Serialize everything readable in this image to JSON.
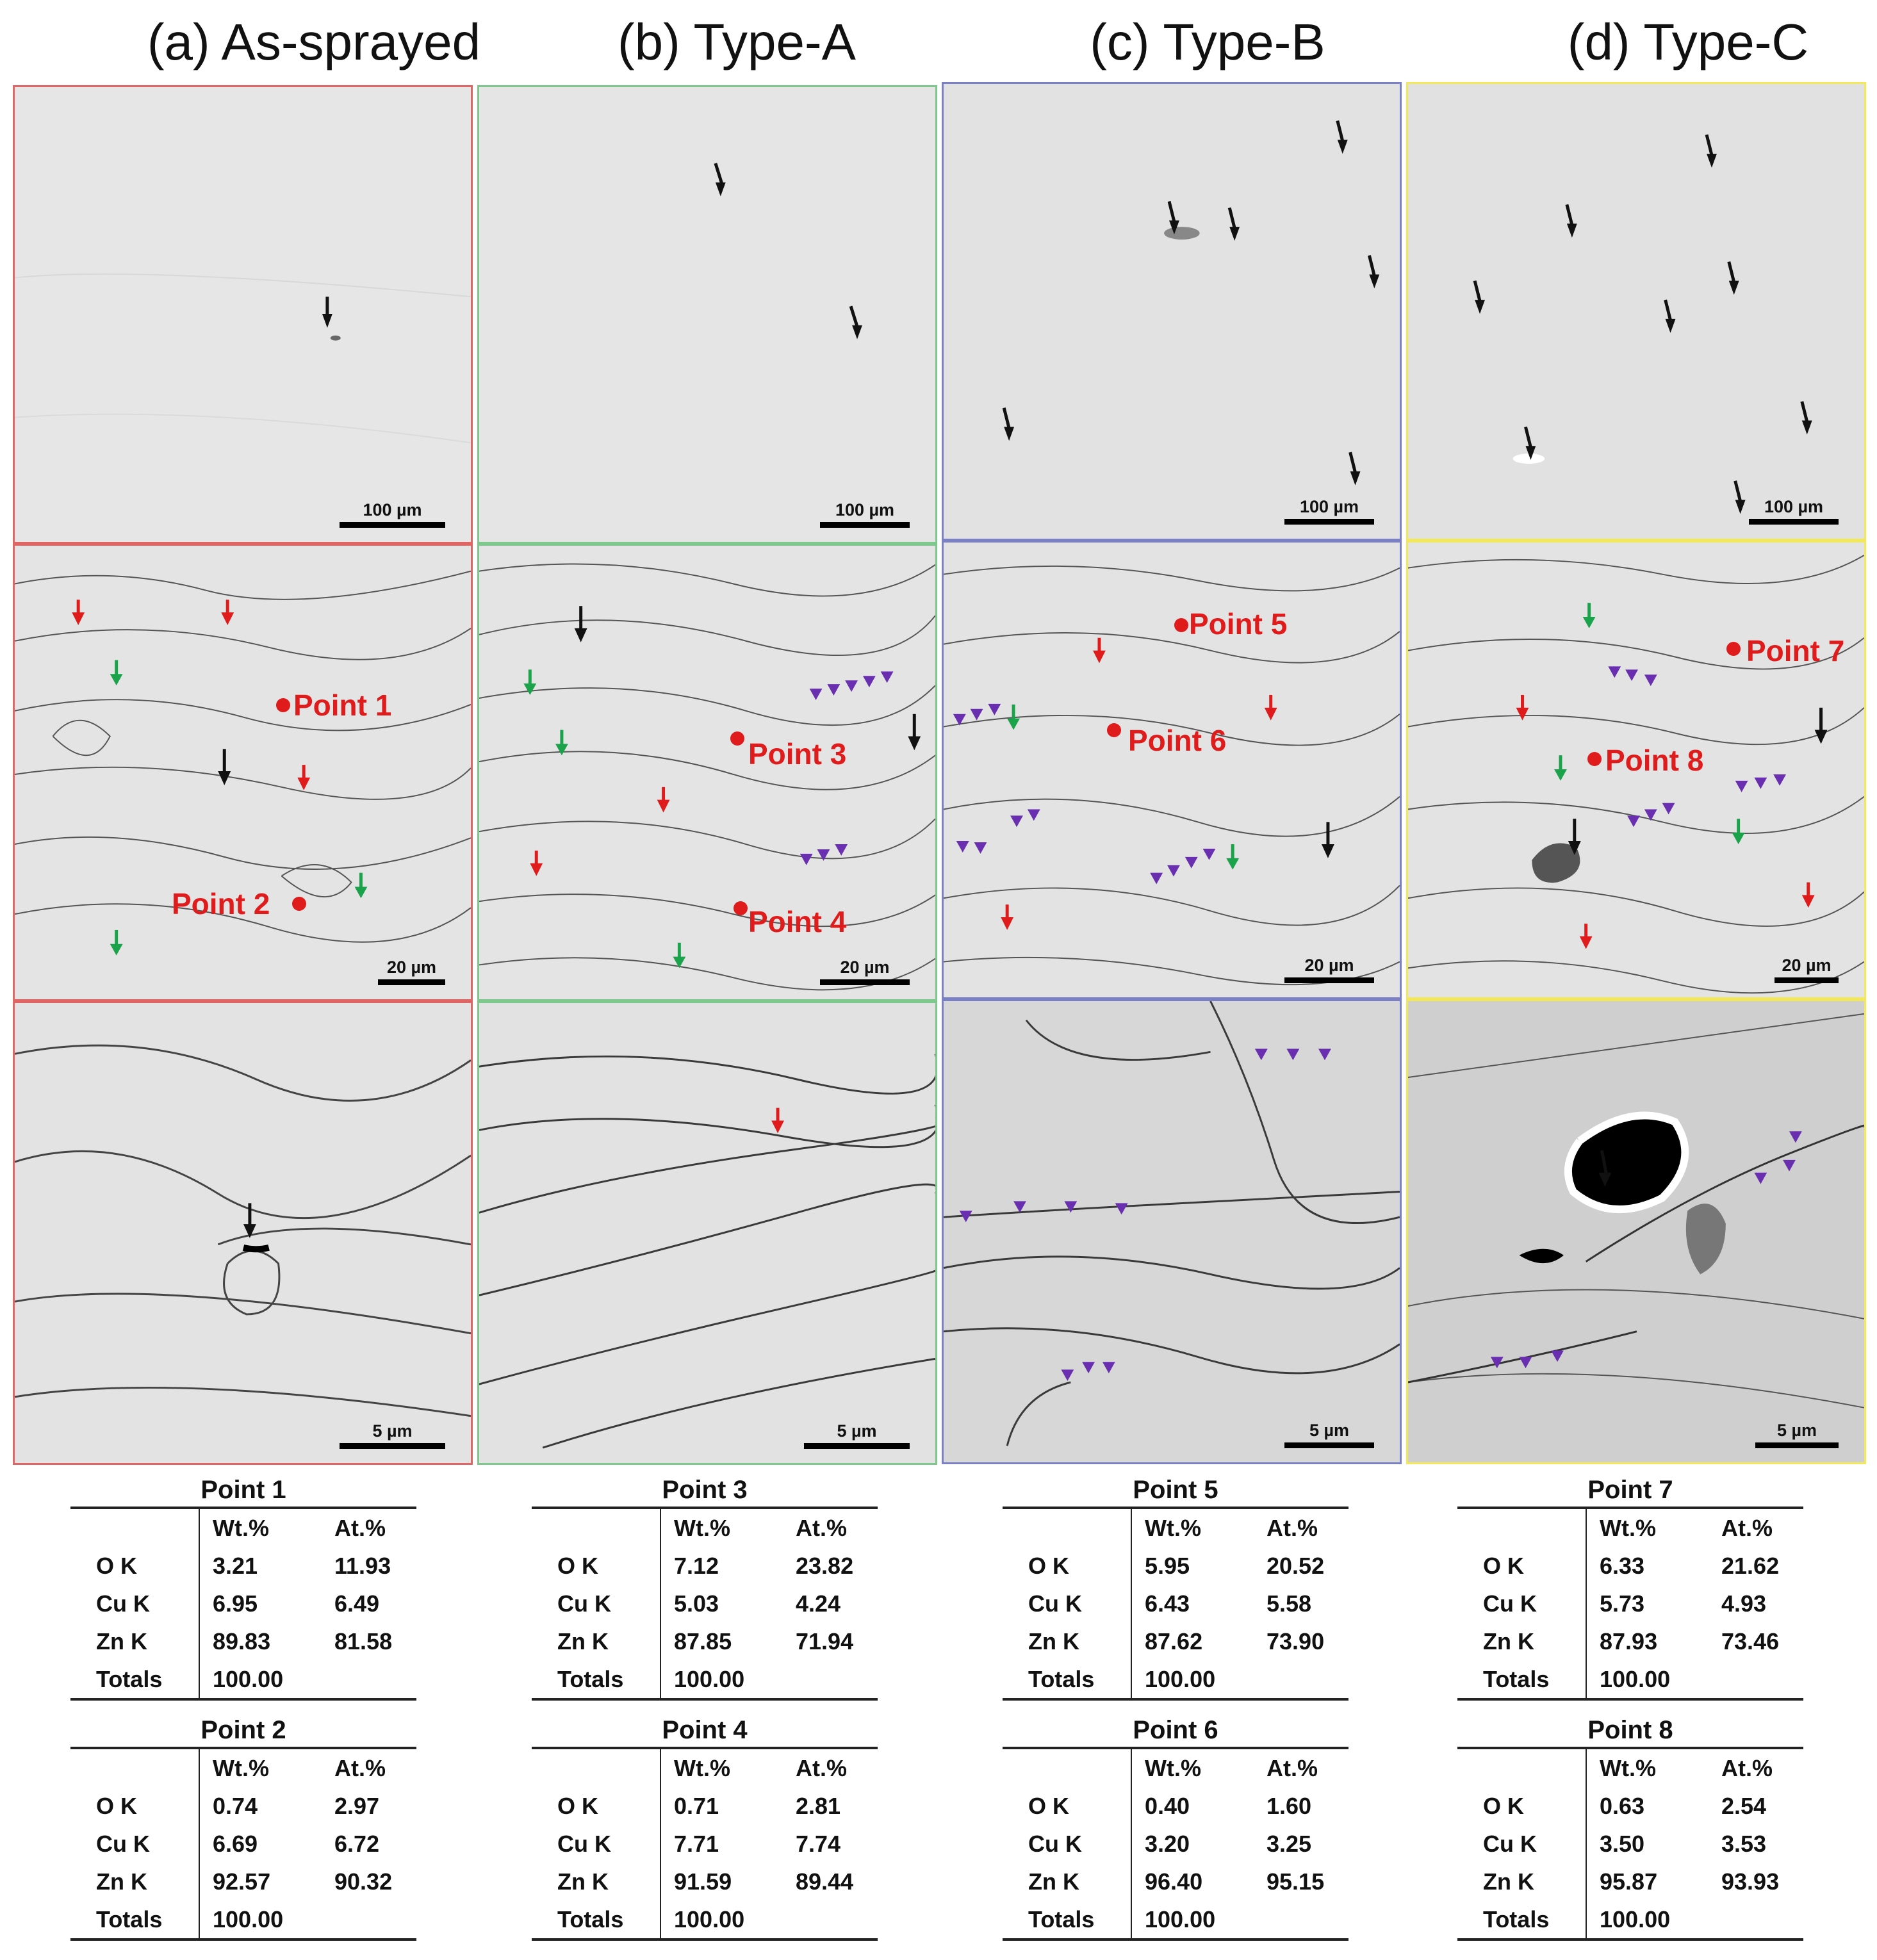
{
  "columns": [
    {
      "title": "(a) As-sprayed",
      "border": "#e06666",
      "scales": [
        "100 µm",
        "20 µm",
        "5 µm"
      ],
      "points": [
        "Point 1",
        "Point 2"
      ]
    },
    {
      "title": "(b) Type-A",
      "border": "#7ec88e",
      "scales": [
        "100 µm",
        "20 µm",
        "5 µm"
      ],
      "points": [
        "Point 3",
        "Point 4"
      ]
    },
    {
      "title": "(c) Type-B",
      "border": "#7b7fc4",
      "scales": [
        "100 µm",
        "20 µm",
        "5 µm"
      ],
      "points": [
        "Point 5",
        "Point 6"
      ]
    },
    {
      "title": "(d) Type-C",
      "border": "#f2e85a",
      "scales": [
        "100 µm",
        "20 µm",
        "5 µm"
      ],
      "points": [
        "Point 7",
        "Point 8"
      ]
    }
  ],
  "eds_header": [
    "",
    "Wt.%",
    "At.%"
  ],
  "eds_tables": [
    {
      "title": "Point 1",
      "rows": [
        [
          "O K",
          "3.21",
          "11.93"
        ],
        [
          "Cu K",
          "6.95",
          "6.49"
        ],
        [
          "Zn K",
          "89.83",
          "81.58"
        ],
        [
          "Totals",
          "100.00",
          ""
        ]
      ]
    },
    {
      "title": "Point 2",
      "rows": [
        [
          "O K",
          "0.74",
          "2.97"
        ],
        [
          "Cu K",
          "6.69",
          "6.72"
        ],
        [
          "Zn K",
          "92.57",
          "90.32"
        ],
        [
          "Totals",
          "100.00",
          ""
        ]
      ]
    },
    {
      "title": "Point 3",
      "rows": [
        [
          "O K",
          "7.12",
          "23.82"
        ],
        [
          "Cu K",
          "5.03",
          "4.24"
        ],
        [
          "Zn K",
          "87.85",
          "71.94"
        ],
        [
          "Totals",
          "100.00",
          ""
        ]
      ]
    },
    {
      "title": "Point 4",
      "rows": [
        [
          "O K",
          "0.71",
          "2.81"
        ],
        [
          "Cu K",
          "7.71",
          "7.74"
        ],
        [
          "Zn K",
          "91.59",
          "89.44"
        ],
        [
          "Totals",
          "100.00",
          ""
        ]
      ]
    },
    {
      "title": "Point 5",
      "rows": [
        [
          "O K",
          "5.95",
          "20.52"
        ],
        [
          "Cu K",
          "6.43",
          "5.58"
        ],
        [
          "Zn K",
          "87.62",
          "73.90"
        ],
        [
          "Totals",
          "100.00",
          ""
        ]
      ]
    },
    {
      "title": "Point 6",
      "rows": [
        [
          "O K",
          "0.40",
          "1.60"
        ],
        [
          "Cu K",
          "3.20",
          "3.25"
        ],
        [
          "Zn K",
          "96.40",
          "95.15"
        ],
        [
          "Totals",
          "100.00",
          ""
        ]
      ]
    },
    {
      "title": "Point 7",
      "rows": [
        [
          "O K",
          "6.33",
          "21.62"
        ],
        [
          "Cu K",
          "5.73",
          "4.93"
        ],
        [
          "Zn K",
          "87.93",
          "73.46"
        ],
        [
          "Totals",
          "100.00",
          ""
        ]
      ]
    },
    {
      "title": "Point 8",
      "rows": [
        [
          "O K",
          "0.63",
          "2.54"
        ],
        [
          "Cu K",
          "3.50",
          "3.53"
        ],
        [
          "Zn K",
          "95.87",
          "93.93"
        ],
        [
          "Totals",
          "100.00",
          ""
        ]
      ]
    }
  ]
}
